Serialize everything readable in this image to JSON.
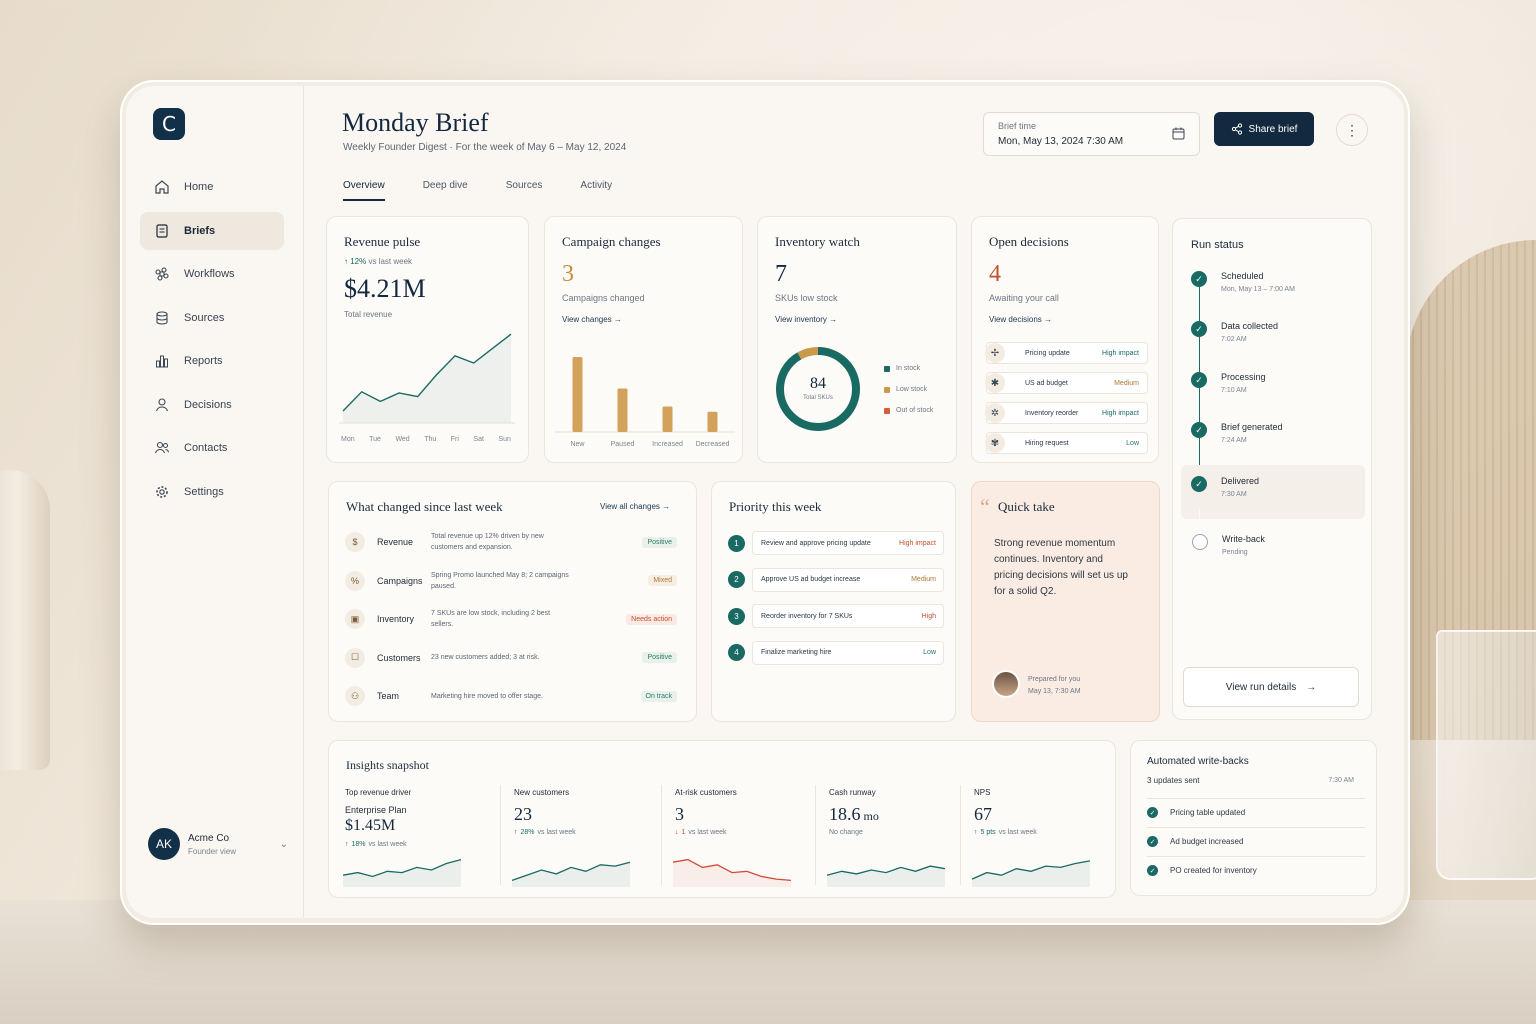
{
  "app": {
    "logo_letter": "C"
  },
  "sidebar": {
    "items": [
      {
        "label": "Home",
        "icon": "home-icon"
      },
      {
        "label": "Briefs",
        "icon": "document-icon",
        "active": true
      },
      {
        "label": "Workflows",
        "icon": "command-icon"
      },
      {
        "label": "Sources",
        "icon": "database-icon"
      },
      {
        "label": "Reports",
        "icon": "bar-chart-icon"
      },
      {
        "label": "Decisions",
        "icon": "person-icon"
      },
      {
        "label": "Contacts",
        "icon": "people-icon"
      },
      {
        "label": "Settings",
        "icon": "gear-icon"
      }
    ],
    "user": {
      "initials": "AK",
      "name": "Acme Co",
      "role": "Founder view"
    }
  },
  "header": {
    "title": "Monday Brief",
    "subtitle": "Weekly Founder Digest  ·  For the week of May 6 – May 12, 2024",
    "brief_time_label": "Brief time",
    "brief_time_value": "Mon, May 13, 2024  7:30 AM",
    "share_label": "Share brief"
  },
  "tabs": [
    "Overview",
    "Deep dive",
    "Sources",
    "Activity"
  ],
  "revenue": {
    "title": "Revenue pulse",
    "change": "12%",
    "change_text": "vs last week",
    "value": "$4.21M",
    "label": "Total revenue",
    "days": [
      "Mon",
      "Tue",
      "Wed",
      "Thu",
      "Fri",
      "Sat",
      "Sun"
    ],
    "trend": [
      10,
      26,
      18,
      25,
      22,
      40,
      56,
      50,
      62,
      74
    ]
  },
  "campaigns": {
    "title": "Campaign changes",
    "value": "3",
    "label": "Campaigns changed",
    "link": "View changes",
    "chart_data": {
      "type": "bar",
      "categories": [
        "New",
        "Paused",
        "Increased",
        "Decreased"
      ],
      "values": [
        100,
        58,
        34,
        27
      ],
      "ylim": [
        0,
        100
      ]
    }
  },
  "inventory": {
    "title": "Inventory watch",
    "value": "7",
    "label": "SKUs low stock",
    "link": "View inventory",
    "total": "84",
    "total_label": "Total SKUs",
    "legend": [
      "In stock",
      "Low stock",
      "Out of stock"
    ],
    "colors": {
      "in": "#1a6a64",
      "low": "#c89a4a",
      "out": "#d95c3b"
    },
    "chart_data": {
      "type": "pie",
      "categories": [
        "In stock",
        "Low stock",
        "Out of stock"
      ],
      "values": [
        77,
        7,
        0
      ]
    }
  },
  "decisions": {
    "title": "Open decisions",
    "value": "4",
    "label": "Awaiting your call",
    "link": "View decisions",
    "items": [
      {
        "label": "Pricing update",
        "impact": "High impact",
        "color": "#1a6a64"
      },
      {
        "label": "US ad budget",
        "impact": "Medium",
        "color": "#b27636"
      },
      {
        "label": "Inventory reorder",
        "impact": "High impact",
        "color": "#1a6a64"
      },
      {
        "label": "Hiring request",
        "impact": "Low",
        "color": "#2e7a62"
      }
    ]
  },
  "changes": {
    "title": "What changed since last week",
    "link": "View all changes",
    "rows": [
      {
        "label": "Revenue",
        "desc": "Total revenue up 12% driven by new customers and expansion.",
        "badge": "Positive",
        "type": "pos",
        "icon": "$"
      },
      {
        "label": "Campaigns",
        "desc": "Spring Promo launched May 8; 2 campaigns paused.",
        "badge": "Mixed",
        "type": "mix",
        "icon": "%"
      },
      {
        "label": "Inventory",
        "desc": "7 SKUs are low stock, including 2 best sellers.",
        "badge": "Needs action",
        "type": "need",
        "icon": "▣"
      },
      {
        "label": "Customers",
        "desc": "23 new customers added; 3 at risk.",
        "badge": "Positive",
        "type": "pos",
        "icon": "☐"
      },
      {
        "label": "Team",
        "desc": "Marketing hire moved to offer stage.",
        "badge": "On track",
        "type": "pos",
        "icon": "⚇"
      }
    ]
  },
  "priority": {
    "title": "Priority this week",
    "items": [
      {
        "num": "1",
        "label": "Review and approve pricing update",
        "impact": "High impact"
      },
      {
        "num": "2",
        "label": "Approve US ad budget increase",
        "impact": "Medium"
      },
      {
        "num": "3",
        "label": "Reorder inventory for 7 SKUs",
        "impact": "High"
      },
      {
        "num": "4",
        "label": "Finalize marketing hire",
        "impact": "Low"
      }
    ],
    "impact_colors": {
      "High impact": "#c0502f",
      "Medium": "#b27636",
      "High": "#c0502f",
      "Low": "#2e7a62"
    }
  },
  "quick": {
    "quote_mark": "“",
    "title": "Quick take",
    "text": "Strong revenue momentum continues. Inventory and pricing decisions will set us up for a solid Q2.",
    "prepared": "Prepared for you",
    "prepared_time": "May 13, 7:30 AM"
  },
  "run": {
    "title": "Run status",
    "steps": [
      {
        "name": "Scheduled",
        "time": "Mon, May 13 – 7:00 AM",
        "done": true
      },
      {
        "name": "Data collected",
        "time": "7:02 AM",
        "done": true
      },
      {
        "name": "Processing",
        "time": "7:10 AM",
        "done": true
      },
      {
        "name": "Brief generated",
        "time": "7:24 AM",
        "done": true
      },
      {
        "name": "Delivered",
        "time": "7:30 AM",
        "done": true
      },
      {
        "name": "Write-back",
        "time": "Pending",
        "done": false
      }
    ],
    "button": "View run details"
  },
  "insights": {
    "title": "Insights snapshot",
    "items": [
      {
        "label": "Top revenue driver",
        "sub": "Enterprise Plan",
        "value": "$1.45M",
        "unit": "",
        "change": "18%",
        "change_text": "vs last week",
        "dir": "up",
        "color": "#1a6a64",
        "trend": [
          6,
          8,
          5,
          9,
          8,
          12,
          10,
          15,
          18
        ]
      },
      {
        "label": "New customers",
        "sub": "",
        "value": "23",
        "unit": "",
        "change": "28%",
        "change_text": "vs last week",
        "dir": "up",
        "color": "#1a6a64",
        "trend": [
          2,
          6,
          10,
          7,
          12,
          9,
          14,
          13,
          16
        ]
      },
      {
        "label": "At-risk customers",
        "sub": "",
        "value": "3",
        "unit": "",
        "change": "1",
        "change_text": "vs last week",
        "dir": "down",
        "color": "#d24b3b",
        "trend": [
          16,
          18,
          12,
          14,
          8,
          9,
          5,
          3,
          2
        ]
      },
      {
        "label": "Cash runway",
        "sub": "",
        "value": "18.6",
        "unit": "mo",
        "change": "",
        "change_text": "No change",
        "dir": "none",
        "color": "#1a6a64",
        "trend": [
          6,
          9,
          7,
          10,
          8,
          12,
          9,
          13,
          11
        ]
      },
      {
        "label": "NPS",
        "sub": "",
        "value": "67",
        "unit": "",
        "change": "5 pts",
        "change_text": "vs last week",
        "dir": "up",
        "color": "#1a6a64",
        "trend": [
          3,
          8,
          6,
          11,
          9,
          13,
          12,
          15,
          17
        ]
      }
    ]
  },
  "writebacks": {
    "title": "Automated write-backs",
    "count": "3 updates sent",
    "time": "7:30 AM",
    "items": [
      "Pricing table updated",
      "Ad budget increased",
      "PO created for inventory"
    ]
  }
}
